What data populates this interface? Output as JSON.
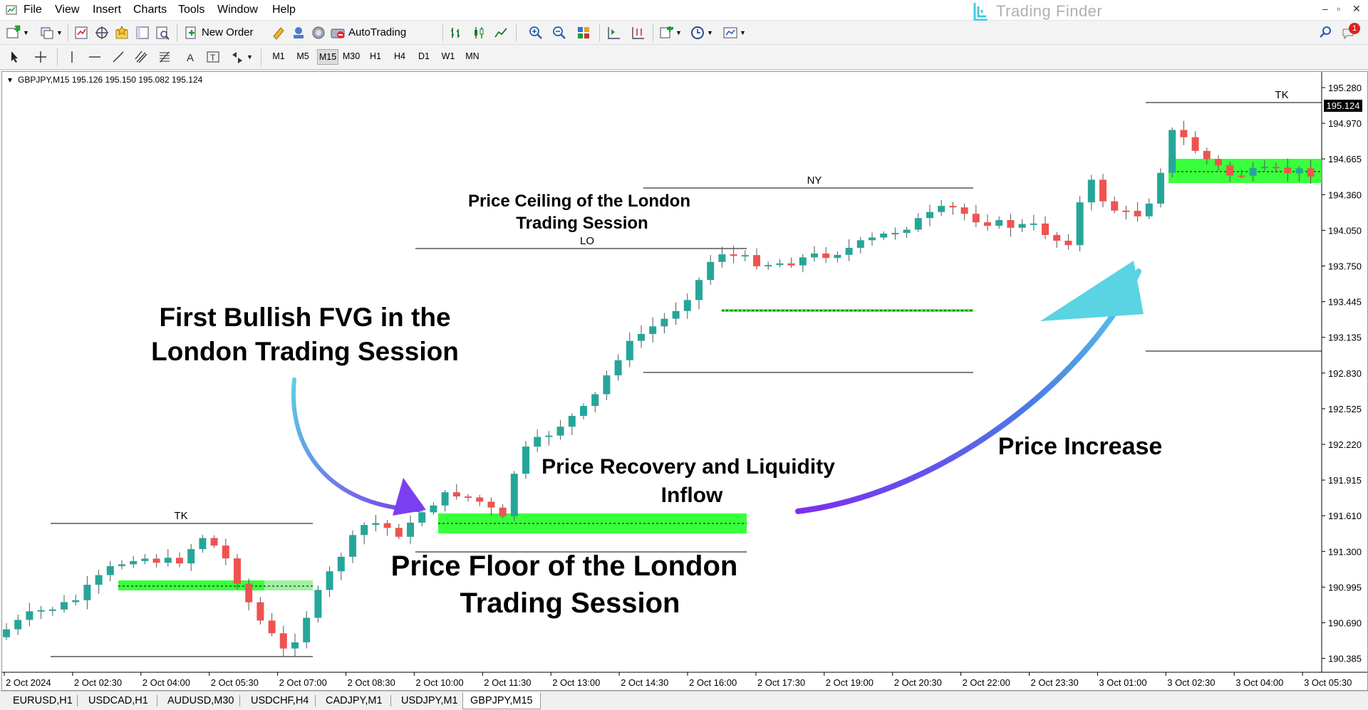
{
  "menu": [
    "File",
    "View",
    "Insert",
    "Charts",
    "Tools",
    "Window",
    "Help"
  ],
  "brand": "Trading Finder",
  "toolbar": {
    "new_order": "New Order",
    "autotrading": "AutoTrading"
  },
  "timeframes": [
    "M1",
    "M5",
    "M15",
    "M30",
    "H1",
    "H4",
    "D1",
    "W1",
    "MN"
  ],
  "active_timeframe": "M15",
  "chart": {
    "header": "GBPJPY,M15  195.126 195.150 195.082 195.124",
    "current_price": "195.124",
    "price_labels": [
      "195.280",
      "194.970",
      "194.665",
      "194.360",
      "194.050",
      "193.750",
      "193.445",
      "193.135",
      "192.830",
      "192.525",
      "192.220",
      "191.915",
      "191.610",
      "191.300",
      "190.995",
      "190.690",
      "190.385"
    ],
    "time_labels": [
      "2 Oct 2024",
      "2 Oct 02:30",
      "2 Oct 04:00",
      "2 Oct 05:30",
      "2 Oct 07:00",
      "2 Oct 08:30",
      "2 Oct 10:00",
      "2 Oct 11:30",
      "2 Oct 13:00",
      "2 Oct 14:30",
      "2 Oct 16:00",
      "2 Oct 17:30",
      "2 Oct 19:00",
      "2 Oct 20:30",
      "2 Oct 22:00",
      "2 Oct 23:30",
      "3 Oct 01:00",
      "3 Oct 02:30",
      "3 Oct 04:00",
      "3 Oct 05:30"
    ],
    "session_labels": {
      "tk1": "TK",
      "lo": "LO",
      "ny": "NY",
      "tk2": "TK"
    },
    "annotations": {
      "fvg": "First Bullish FVG in the London Trading Session",
      "fvg_line1": "First Bullish FVG in the",
      "fvg_line2": "London Trading Session",
      "ceiling_line1": "Price Ceiling of the London",
      "ceiling_line2": "Trading Session",
      "recovery_line1": "Price Recovery and Liquidity",
      "recovery_line2": "Inflow",
      "floor_line1": "Price Floor of the London",
      "floor_line2": "Trading Session",
      "increase": "Price Increase"
    },
    "colors": {
      "bull": "#26a69a",
      "bear": "#ef5350",
      "fvg": "#39ff3c",
      "arrow1_start": "#5bd0df",
      "arrow1_end": "#7b3ff2",
      "arrow2_start": "#7b2ff0",
      "arrow2_end": "#5ad3e3"
    }
  },
  "tabs": [
    "EURUSD,H1",
    "USDCAD,H1",
    "AUDUSD,M30",
    "USDCHF,H4",
    "CADJPY,M1",
    "USDJPY,M1",
    "GBPJPY,M15"
  ],
  "active_tab": "GBPJPY,M15",
  "notification_count": "1"
}
